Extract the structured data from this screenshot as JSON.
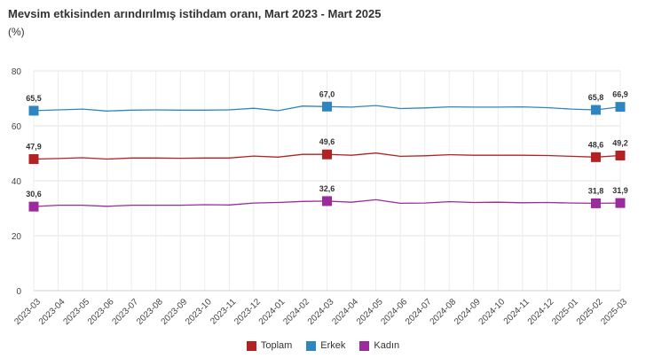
{
  "title": "Mevsim etkisinden arındırılmış istihdam oranı, Mart 2023 - Mart 2025",
  "subtitle": "(%)",
  "chart_data": {
    "type": "line",
    "categories": [
      "2023-03",
      "2023-04",
      "2023-05",
      "2023-06",
      "2023-07",
      "2023-08",
      "2023-09",
      "2023-10",
      "2023-11",
      "2023-12",
      "2024-01",
      "2024-02",
      "2024-03",
      "2024-04",
      "2024-05",
      "2024-06",
      "2024-07",
      "2024-08",
      "2024-09",
      "2024-10",
      "2024-11",
      "2024-12",
      "2025-01",
      "2025-02",
      "2025-03"
    ],
    "ylim": [
      0,
      80
    ],
    "yticks": [
      0,
      20,
      40,
      60,
      80
    ],
    "grid": true,
    "legend_position": "bottom",
    "series": [
      {
        "name": "Toplam",
        "color": "#B22222",
        "values": [
          47.9,
          48.1,
          48.4,
          47.9,
          48.3,
          48.3,
          48.2,
          48.3,
          48.3,
          49.0,
          48.6,
          49.6,
          49.6,
          49.3,
          50.1,
          48.9,
          49.1,
          49.5,
          49.3,
          49.3,
          49.3,
          49.2,
          48.9,
          48.6,
          49.2
        ],
        "labels": {
          "0": "47,9",
          "12": "49,6",
          "23": "48,6",
          "24": "49,2"
        }
      },
      {
        "name": "Erkek",
        "color": "#2E86C1",
        "values": [
          65.5,
          65.8,
          66.1,
          65.4,
          65.7,
          65.8,
          65.7,
          65.7,
          65.8,
          66.4,
          65.5,
          67.2,
          67.0,
          66.8,
          67.4,
          66.3,
          66.5,
          66.9,
          66.8,
          66.8,
          66.9,
          66.6,
          66.1,
          65.8,
          66.9
        ],
        "labels": {
          "0": "65,5",
          "12": "67,0",
          "23": "65,8",
          "24": "66,9"
        }
      },
      {
        "name": "Kadın",
        "color": "#9B2A9B",
        "values": [
          30.6,
          31.1,
          31.1,
          30.7,
          31.1,
          31.1,
          31.1,
          31.3,
          31.2,
          31.9,
          32.1,
          32.5,
          32.6,
          32.2,
          33.1,
          31.8,
          31.9,
          32.4,
          32.1,
          32.2,
          32.0,
          32.1,
          31.9,
          31.8,
          31.9
        ],
        "labels": {
          "0": "30,6",
          "12": "32,6",
          "23": "31,8",
          "24": "31,9"
        }
      }
    ]
  },
  "legend": {
    "items": [
      {
        "label": "Toplam",
        "color": "#B22222"
      },
      {
        "label": "Erkek",
        "color": "#2E86C1"
      },
      {
        "label": "Kadın",
        "color": "#9B2A9B"
      }
    ]
  }
}
